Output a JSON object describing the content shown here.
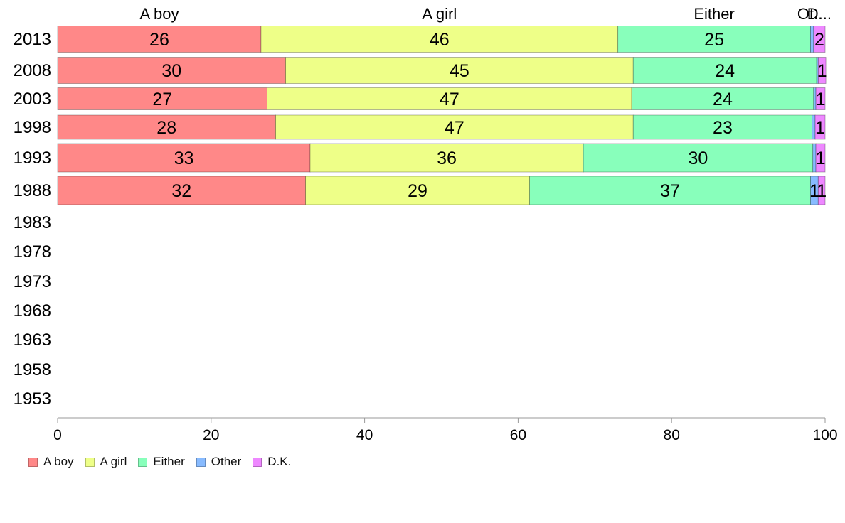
{
  "chart_data": {
    "type": "bar",
    "orientation": "horizontal",
    "stacked": true,
    "categories": [
      "2013",
      "2008",
      "2003",
      "1998",
      "1993",
      "1988",
      "1983",
      "1978",
      "1973",
      "1968",
      "1963",
      "1958",
      "1953"
    ],
    "series": [
      {
        "name": "A boy",
        "color": "#ff8888",
        "values": [
          26.5,
          29.7,
          27.3,
          28.4,
          32.9,
          32.3,
          null,
          null,
          null,
          null,
          null,
          null,
          null
        ],
        "labels": [
          "26",
          "30",
          "27",
          "28",
          "33",
          "32"
        ]
      },
      {
        "name": "A girl",
        "color": "#eeff88",
        "values": [
          46.5,
          45.3,
          47.5,
          46.6,
          35.6,
          29.2,
          null,
          null,
          null,
          null,
          null,
          null,
          null
        ],
        "labels": [
          "46",
          "45",
          "47",
          "47",
          "36",
          "29"
        ]
      },
      {
        "name": "Either",
        "color": "#88ffbb",
        "values": [
          25.1,
          23.9,
          23.7,
          23.3,
          29.9,
          36.6,
          null,
          null,
          null,
          null,
          null,
          null,
          null
        ],
        "labels": [
          "25",
          "24",
          "24",
          "23",
          "30",
          "37"
        ]
      },
      {
        "name": "Other",
        "color": "#88bbff",
        "values": [
          0.4,
          0.2,
          0.3,
          0.4,
          0.4,
          1.0,
          null,
          null,
          null,
          null,
          null,
          null,
          null
        ],
        "labels": [
          "",
          "",
          "",
          "",
          "",
          "1"
        ]
      },
      {
        "name": "D.K.",
        "color": "#ee88ff",
        "values": [
          1.5,
          1.0,
          1.2,
          1.3,
          1.2,
          0.9,
          null,
          null,
          null,
          null,
          null,
          null,
          null
        ],
        "labels": [
          "2",
          "1",
          "1",
          "1",
          "1",
          "1"
        ]
      }
    ],
    "column_labels": [
      "A boy",
      "A girl",
      "Either",
      "Ot...",
      "D..."
    ],
    "xlim": [
      0,
      100
    ],
    "xticks": [
      "0",
      "20",
      "40",
      "60",
      "80",
      "100"
    ],
    "grid": false,
    "legend_position": "bottom-left"
  }
}
